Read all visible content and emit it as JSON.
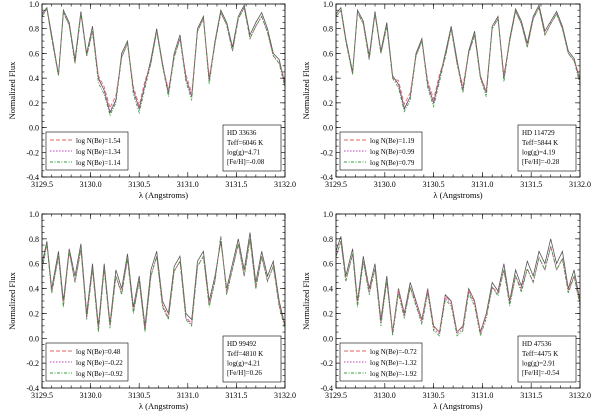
{
  "chart_data": [
    {
      "type": "line",
      "star": "HD 33636",
      "params": [
        "Teff=6046 K",
        "log(g)=4.71",
        "[Fe/H]=-0.08"
      ],
      "series": [
        {
          "name": "log N(Be)=1.54",
          "color": "#e06060",
          "dash": "4,2"
        },
        {
          "name": "log N(Be)=1.34",
          "color": "#c040c0",
          "dash": "1.5,1.5"
        },
        {
          "name": "log N(Be)=1.14",
          "color": "#30a030",
          "dash": "3,1.5,1,1.5"
        }
      ],
      "observed": {
        "x": [
          3129.5,
          3129.55,
          3129.6,
          3129.67,
          3129.72,
          3129.78,
          3129.84,
          3129.9,
          3129.96,
          3130.02,
          3130.08,
          3130.14,
          3130.2,
          3130.26,
          3130.32,
          3130.38,
          3130.44,
          3130.5,
          3130.56,
          3130.62,
          3130.68,
          3130.74,
          3130.8,
          3130.86,
          3130.92,
          3130.98,
          3131.04,
          3131.1,
          3131.16,
          3131.22,
          3131.28,
          3131.34,
          3131.4,
          3131.46,
          3131.52,
          3131.58,
          3131.64,
          3131.7,
          3131.76,
          3131.82,
          3131.88,
          3131.94,
          3132.0
        ],
        "y": [
          0.92,
          0.97,
          0.75,
          0.43,
          0.95,
          0.85,
          0.55,
          0.94,
          0.6,
          0.82,
          0.4,
          0.3,
          0.12,
          0.22,
          0.6,
          0.7,
          0.3,
          0.15,
          0.35,
          0.55,
          0.8,
          0.52,
          0.28,
          0.6,
          0.75,
          0.4,
          0.25,
          0.8,
          0.9,
          0.38,
          0.7,
          0.95,
          0.85,
          0.65,
          0.9,
          0.99,
          0.75,
          0.85,
          0.93,
          0.8,
          0.6,
          0.55,
          0.35
        ]
      },
      "synthetic": {
        "x": [
          3129.5,
          3129.55,
          3129.6,
          3129.67,
          3129.72,
          3129.78,
          3129.84,
          3129.9,
          3129.96,
          3130.02,
          3130.08,
          3130.14,
          3130.2,
          3130.26,
          3130.32,
          3130.38,
          3130.44,
          3130.5,
          3130.56,
          3130.62,
          3130.68,
          3130.74,
          3130.8,
          3130.86,
          3130.92,
          3130.98,
          3131.04,
          3131.1,
          3131.16,
          3131.22,
          3131.28,
          3131.34,
          3131.4,
          3131.46,
          3131.52,
          3131.58,
          3131.64,
          3131.7,
          3131.76,
          3131.82,
          3131.88,
          3131.94,
          3132.0
        ],
        "y": [
          0.9,
          0.96,
          0.72,
          0.42,
          0.93,
          0.83,
          0.52,
          0.92,
          0.58,
          0.78,
          0.36,
          0.27,
          0.1,
          0.2,
          0.57,
          0.68,
          0.27,
          0.12,
          0.32,
          0.52,
          0.78,
          0.5,
          0.25,
          0.57,
          0.72,
          0.37,
          0.22,
          0.78,
          0.88,
          0.35,
          0.68,
          0.93,
          0.83,
          0.62,
          0.88,
          0.97,
          0.72,
          0.82,
          0.9,
          0.77,
          0.58,
          0.52,
          0.32
        ],
        "offsets": [
          0.06,
          0.03,
          0.0
        ]
      },
      "xlim": [
        3129.5,
        3132.0
      ],
      "ylim": [
        -0.4,
        1.0
      ],
      "xlabel": "λ (Angstroms)",
      "ylabel": "Normalized Flux",
      "xticks": [
        "3129.5",
        "3130.0",
        "3130.5",
        "3131.0",
        "3131.5",
        "3132.0"
      ],
      "yticks": [
        "-0.4",
        "-0.2",
        "0.0",
        "0.2",
        "0.4",
        "0.6",
        "0.8",
        "1.0"
      ]
    },
    {
      "type": "line",
      "star": "HD 114729",
      "params": [
        "Teff=5844 K",
        "log(g)=4.19",
        "[Fe/H]=-0.28"
      ],
      "series": [
        {
          "name": "log N(Be)=1.19",
          "color": "#e06060",
          "dash": "4,2"
        },
        {
          "name": "log N(Be)=0.99",
          "color": "#c040c0",
          "dash": "1.5,1.5"
        },
        {
          "name": "log N(Be)=0.79",
          "color": "#30a030",
          "dash": "3,1.5,1,1.5"
        }
      ],
      "observed": {
        "x": [
          3129.5,
          3129.55,
          3129.6,
          3129.67,
          3129.72,
          3129.78,
          3129.84,
          3129.9,
          3129.96,
          3130.02,
          3130.08,
          3130.14,
          3130.2,
          3130.26,
          3130.32,
          3130.38,
          3130.44,
          3130.5,
          3130.56,
          3130.62,
          3130.68,
          3130.74,
          3130.8,
          3130.86,
          3130.92,
          3130.98,
          3131.04,
          3131.1,
          3131.16,
          3131.22,
          3131.28,
          3131.34,
          3131.4,
          3131.46,
          3131.52,
          3131.58,
          3131.64,
          3131.7,
          3131.76,
          3131.82,
          3131.88,
          3131.94,
          3132.0
        ],
        "y": [
          0.92,
          0.97,
          0.72,
          0.45,
          0.95,
          0.86,
          0.58,
          0.94,
          0.62,
          0.85,
          0.42,
          0.35,
          0.15,
          0.25,
          0.6,
          0.72,
          0.35,
          0.2,
          0.4,
          0.6,
          0.82,
          0.55,
          0.3,
          0.62,
          0.78,
          0.42,
          0.28,
          0.82,
          0.9,
          0.4,
          0.72,
          0.96,
          0.86,
          0.68,
          0.9,
          0.99,
          0.78,
          0.86,
          0.94,
          0.82,
          0.62,
          0.56,
          0.38
        ]
      },
      "synthetic": {
        "x": [
          3129.5,
          3129.55,
          3129.6,
          3129.67,
          3129.72,
          3129.78,
          3129.84,
          3129.9,
          3129.96,
          3130.02,
          3130.08,
          3130.14,
          3130.2,
          3130.26,
          3130.32,
          3130.38,
          3130.44,
          3130.5,
          3130.56,
          3130.62,
          3130.68,
          3130.74,
          3130.8,
          3130.86,
          3130.92,
          3130.98,
          3131.04,
          3131.1,
          3131.16,
          3131.22,
          3131.28,
          3131.34,
          3131.4,
          3131.46,
          3131.52,
          3131.58,
          3131.64,
          3131.7,
          3131.76,
          3131.82,
          3131.88,
          3131.94,
          3132.0
        ],
        "y": [
          0.9,
          0.95,
          0.7,
          0.43,
          0.93,
          0.84,
          0.55,
          0.92,
          0.6,
          0.82,
          0.4,
          0.32,
          0.13,
          0.22,
          0.58,
          0.7,
          0.32,
          0.17,
          0.37,
          0.57,
          0.8,
          0.52,
          0.28,
          0.6,
          0.75,
          0.4,
          0.25,
          0.8,
          0.88,
          0.37,
          0.7,
          0.94,
          0.84,
          0.65,
          0.88,
          0.97,
          0.75,
          0.84,
          0.92,
          0.8,
          0.6,
          0.54,
          0.35
        ],
        "offsets": [
          0.06,
          0.03,
          0.0
        ]
      },
      "xlim": [
        3129.5,
        3132.0
      ],
      "ylim": [
        -0.4,
        1.0
      ],
      "xlabel": "λ (Angstroms)",
      "ylabel": "Normalized Flux",
      "xticks": [
        "3129.5",
        "3130.0",
        "3130.5",
        "3131.0",
        "3131.5",
        "3132.0"
      ],
      "yticks": [
        "-0.4",
        "-0.2",
        "0.0",
        "0.2",
        "0.4",
        "0.6",
        "0.8",
        "1.0"
      ]
    },
    {
      "type": "line",
      "star": "HD 99492",
      "params": [
        "Teff=4810 K",
        "log(g)=4.21",
        "[Fe/H]=0.26"
      ],
      "series": [
        {
          "name": "log N(Be)=0.48",
          "color": "#e06060",
          "dash": "4,2"
        },
        {
          "name": "log N(Be)=-0.22",
          "color": "#c040c0",
          "dash": "1.5,1.5"
        },
        {
          "name": "log N(Be)=-0.92",
          "color": "#30a030",
          "dash": "3,1.5,1,1.5"
        }
      ],
      "observed": {
        "x": [
          3129.5,
          3129.55,
          3129.6,
          3129.67,
          3129.72,
          3129.78,
          3129.84,
          3129.9,
          3129.96,
          3130.02,
          3130.08,
          3130.14,
          3130.2,
          3130.26,
          3130.32,
          3130.38,
          3130.44,
          3130.5,
          3130.56,
          3130.62,
          3130.68,
          3130.74,
          3130.8,
          3130.86,
          3130.92,
          3130.98,
          3131.04,
          3131.1,
          3131.16,
          3131.22,
          3131.28,
          3131.34,
          3131.4,
          3131.46,
          3131.52,
          3131.58,
          3131.64,
          3131.7,
          3131.76,
          3131.82,
          3131.88,
          3131.94,
          3132.0
        ],
        "y": [
          0.6,
          0.78,
          0.4,
          0.7,
          0.3,
          0.72,
          0.5,
          0.76,
          0.2,
          0.6,
          0.1,
          0.6,
          0.12,
          0.55,
          0.4,
          0.68,
          0.25,
          0.5,
          0.1,
          0.55,
          0.7,
          0.3,
          0.2,
          0.58,
          0.66,
          0.2,
          0.15,
          0.62,
          0.7,
          0.3,
          0.5,
          0.78,
          0.4,
          0.6,
          0.8,
          0.55,
          0.85,
          0.45,
          0.7,
          0.5,
          0.62,
          0.3,
          0.1
        ]
      },
      "synthetic": {
        "x": [
          3129.5,
          3129.55,
          3129.6,
          3129.67,
          3129.72,
          3129.78,
          3129.84,
          3129.9,
          3129.96,
          3130.02,
          3130.08,
          3130.14,
          3130.2,
          3130.26,
          3130.32,
          3130.38,
          3130.44,
          3130.5,
          3130.56,
          3130.62,
          3130.68,
          3130.74,
          3130.8,
          3130.86,
          3130.92,
          3130.98,
          3131.04,
          3131.1,
          3131.16,
          3131.22,
          3131.28,
          3131.34,
          3131.4,
          3131.46,
          3131.52,
          3131.58,
          3131.64,
          3131.7,
          3131.76,
          3131.82,
          3131.88,
          3131.94,
          3132.0
        ],
        "y": [
          0.55,
          0.76,
          0.36,
          0.66,
          0.25,
          0.7,
          0.45,
          0.72,
          0.15,
          0.56,
          0.05,
          0.56,
          0.08,
          0.5,
          0.35,
          0.64,
          0.2,
          0.46,
          0.05,
          0.5,
          0.66,
          0.25,
          0.15,
          0.54,
          0.62,
          0.15,
          0.1,
          0.58,
          0.66,
          0.25,
          0.46,
          0.82,
          0.35,
          0.56,
          0.76,
          0.5,
          0.8,
          0.4,
          0.66,
          0.46,
          0.58,
          0.25,
          0.08
        ],
        "offsets": [
          0.02,
          0.01,
          0.0
        ]
      },
      "xlim": [
        3129.5,
        3132.0
      ],
      "ylim": [
        -0.4,
        1.0
      ],
      "xlabel": "λ (Angstroms)",
      "ylabel": "Normalized Flux",
      "xticks": [
        "3129.5",
        "3130.0",
        "3130.5",
        "3131.0",
        "3131.5",
        "3132.0"
      ],
      "yticks": [
        "-0.4",
        "-0.2",
        "0.0",
        "0.2",
        "0.4",
        "0.6",
        "0.8",
        "1.0"
      ]
    },
    {
      "type": "line",
      "star": "HD 47536",
      "params": [
        "Teff=4475 K",
        "log(g)=2.91",
        "[Fe/H]=-0.54"
      ],
      "series": [
        {
          "name": "log N(Be)=-0.72",
          "color": "#e06060",
          "dash": "4,2"
        },
        {
          "name": "log N(Be)=-1.32",
          "color": "#c040c0",
          "dash": "1.5,1.5"
        },
        {
          "name": "log N(Be)=-1.92",
          "color": "#30a030",
          "dash": "3,1.5,1,1.5"
        }
      ],
      "observed": {
        "x": [
          3129.5,
          3129.55,
          3129.6,
          3129.67,
          3129.72,
          3129.78,
          3129.84,
          3129.9,
          3129.96,
          3130.02,
          3130.08,
          3130.14,
          3130.2,
          3130.26,
          3130.32,
          3130.38,
          3130.44,
          3130.5,
          3130.56,
          3130.62,
          3130.68,
          3130.74,
          3130.8,
          3130.86,
          3130.92,
          3130.98,
          3131.04,
          3131.1,
          3131.16,
          3131.22,
          3131.28,
          3131.34,
          3131.4,
          3131.46,
          3131.52,
          3131.58,
          3131.64,
          3131.7,
          3131.76,
          3131.82,
          3131.88,
          3131.94,
          3132.0
        ],
        "y": [
          0.7,
          0.82,
          0.5,
          0.72,
          0.3,
          0.66,
          0.4,
          0.6,
          0.15,
          0.5,
          0.05,
          0.4,
          0.2,
          0.45,
          0.3,
          0.15,
          0.4,
          0.1,
          0.05,
          0.35,
          0.3,
          0.05,
          0.1,
          0.4,
          0.3,
          0.05,
          0.2,
          0.45,
          0.38,
          0.6,
          0.3,
          0.55,
          0.42,
          0.62,
          0.5,
          0.7,
          0.6,
          0.8,
          0.6,
          0.7,
          0.4,
          0.55,
          0.3
        ]
      },
      "synthetic": {
        "x": [
          3129.5,
          3129.55,
          3129.6,
          3129.67,
          3129.72,
          3129.78,
          3129.84,
          3129.9,
          3129.96,
          3130.02,
          3130.08,
          3130.14,
          3130.2,
          3130.26,
          3130.32,
          3130.38,
          3130.44,
          3130.5,
          3130.56,
          3130.62,
          3130.68,
          3130.74,
          3130.8,
          3130.86,
          3130.92,
          3130.98,
          3131.04,
          3131.1,
          3131.16,
          3131.22,
          3131.28,
          3131.34,
          3131.4,
          3131.46,
          3131.52,
          3131.58,
          3131.64,
          3131.7,
          3131.76,
          3131.82,
          3131.88,
          3131.94,
          3132.0
        ],
        "y": [
          0.66,
          0.78,
          0.46,
          0.68,
          0.25,
          0.62,
          0.35,
          0.56,
          0.1,
          0.46,
          0.02,
          0.36,
          0.16,
          0.41,
          0.26,
          0.11,
          0.36,
          0.06,
          0.02,
          0.31,
          0.26,
          0.02,
          0.06,
          0.36,
          0.26,
          0.02,
          0.16,
          0.41,
          0.34,
          0.55,
          0.26,
          0.5,
          0.37,
          0.56,
          0.45,
          0.65,
          0.55,
          0.74,
          0.55,
          0.64,
          0.36,
          0.5,
          0.26
        ],
        "offsets": [
          0.03,
          0.015,
          0.0
        ]
      },
      "xlim": [
        3129.5,
        3132.0
      ],
      "ylim": [
        -0.4,
        1.0
      ],
      "xlabel": "λ (Angstroms)",
      "ylabel": "Normalized Flux",
      "xticks": [
        "3129.5",
        "3130.0",
        "3130.5",
        "3131.0",
        "3131.5",
        "3132.0"
      ],
      "yticks": [
        "-0.4",
        "-0.2",
        "0.0",
        "0.2",
        "0.4",
        "0.6",
        "0.8",
        "1.0"
      ]
    }
  ]
}
